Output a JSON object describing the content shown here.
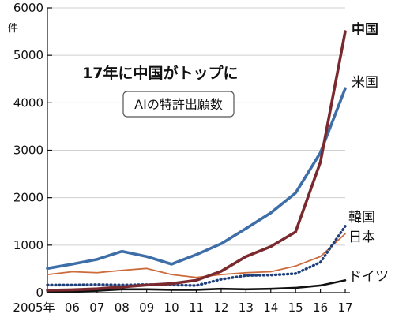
{
  "chart_data": {
    "type": "line",
    "title": "17年に中国がトップに",
    "subtitle": "AIの特許出願数",
    "ylabel": "件",
    "xlabel": "",
    "ylim": [
      0,
      6000
    ],
    "yticks": [
      0,
      1000,
      2000,
      3000,
      4000,
      5000,
      6000
    ],
    "grid": true,
    "x": [
      "2005",
      "06",
      "07",
      "08",
      "09",
      "10",
      "11",
      "12",
      "13",
      "14",
      "15",
      "16",
      "17"
    ],
    "xtick_labels": [
      "2005年",
      "06",
      "07",
      "08",
      "09",
      "10",
      "11",
      "12",
      "13",
      "14",
      "15",
      "16",
      "17"
    ],
    "series": [
      {
        "name": "中国",
        "color": "#7a2a2e",
        "style": "solid",
        "width": "thick",
        "label_bold": true,
        "values": [
          50,
          60,
          80,
          120,
          160,
          190,
          260,
          450,
          760,
          970,
          1280,
          2750,
          5500
        ]
      },
      {
        "name": "米国",
        "color": "#3e6ea8",
        "style": "solid",
        "width": "thick",
        "label_bold": false,
        "values": [
          510,
          600,
          700,
          870,
          760,
          600,
          800,
          1030,
          1350,
          1680,
          2100,
          2950,
          4300
        ]
      },
      {
        "name": "韓国",
        "color": "#1f3f7a",
        "style": "dotted",
        "width": "thick",
        "label_bold": false,
        "values": [
          160,
          160,
          170,
          160,
          170,
          160,
          150,
          280,
          360,
          370,
          400,
          640,
          1400
        ]
      },
      {
        "name": "日本",
        "color": "#cc6b3c",
        "style": "solid",
        "width": "thin",
        "label_bold": false,
        "values": [
          380,
          440,
          420,
          470,
          510,
          380,
          320,
          380,
          420,
          440,
          560,
          760,
          1240
        ]
      },
      {
        "name": "ドイツ",
        "color": "#111111",
        "style": "solid",
        "width": "medium",
        "label_bold": false,
        "values": [
          20,
          25,
          40,
          70,
          70,
          60,
          60,
          80,
          70,
          80,
          100,
          150,
          260
        ]
      }
    ]
  }
}
